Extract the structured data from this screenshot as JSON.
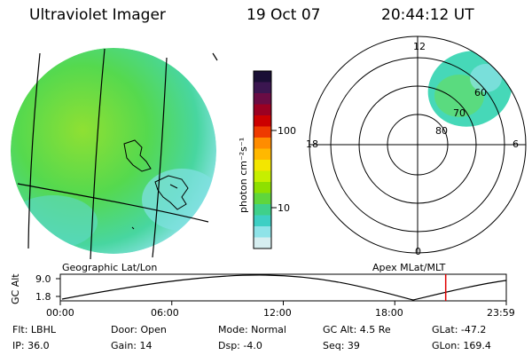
{
  "header": {
    "instrument": "Ultraviolet Imager",
    "date": "19 Oct 07",
    "time": "20:44:12 UT"
  },
  "colorbar": {
    "unit_label": "photon cm⁻²s⁻¹",
    "ticks": [
      "100",
      "10"
    ],
    "colors": [
      "#1a0f35",
      "#3b1650",
      "#6a0c44",
      "#9b0022",
      "#cc0000",
      "#ee3a00",
      "#ff8c00",
      "#ffb800",
      "#f3e600",
      "#c6ef00",
      "#8ee000",
      "#5fd63c",
      "#3fd08a",
      "#3ecfc4",
      "#8fe3e8",
      "#d6eef0"
    ]
  },
  "geo_map": {
    "label": "Geographic Lat/Lon",
    "fill_color": "#4fd85a",
    "edge_color": "#5fdcd0"
  },
  "polar_plot": {
    "label": "Apex MLat/MLT",
    "mlt_labels": [
      "12",
      "18",
      "6",
      "0"
    ],
    "mlat_labels": [
      "80",
      "70",
      "60"
    ],
    "fill_color": "#46d8b8"
  },
  "timeline": {
    "ylabel": "GC Alt",
    "yticks": [
      "9.0",
      "1.8"
    ],
    "xticks": [
      "00:00",
      "06:00",
      "12:00",
      "18:00",
      "23:59"
    ],
    "current_time_hours": 20.74,
    "marker_color": "#e00000"
  },
  "status": {
    "flt": "Flt: LBHL",
    "ip": "IP: 36.0",
    "door": "Door: Open",
    "gain": "Gain: 14",
    "mode": "Mode: Normal",
    "dsp": "Dsp:   -4.0",
    "gc_alt": "GC Alt: 4.5 Re",
    "seq": "Seq: 39",
    "glat": "GLat: -47.2",
    "glon": "GLon: 169.4"
  }
}
